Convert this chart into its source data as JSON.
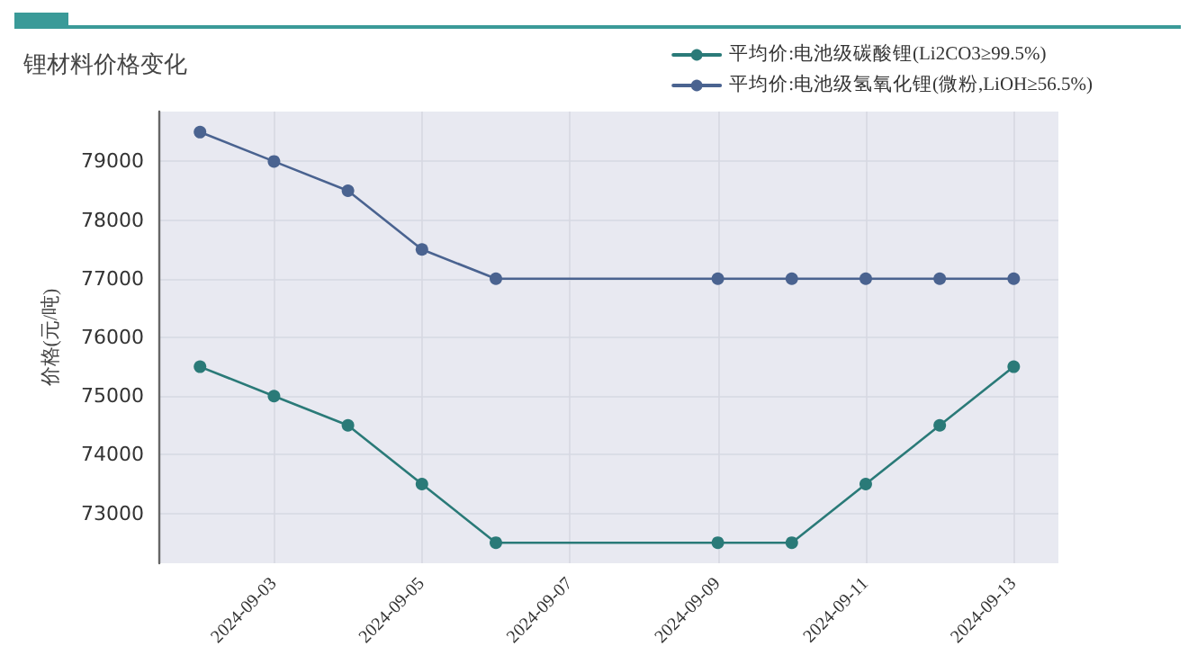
{
  "chart_data": {
    "type": "line",
    "title": "锂材料价格变化",
    "ylabel": "价格(元/吨)",
    "x": [
      "2024-09-02",
      "2024-09-03",
      "2024-09-04",
      "2024-09-05",
      "2024-09-06",
      "2024-09-09",
      "2024-09-10",
      "2024-09-11",
      "2024-09-12",
      "2024-09-13"
    ],
    "series": [
      {
        "name": "平均价:电池级碳酸锂(Li2CO3≥99.5%)",
        "color": "#2a7a78",
        "values": [
          75500,
          75000,
          74500,
          73500,
          72500,
          72500,
          72500,
          73500,
          74500,
          75500
        ]
      },
      {
        "name": "平均价:电池级氢氧化锂(微粉,LiOH≥56.5%)",
        "color": "#4a6390",
        "values": [
          79500,
          79000,
          78500,
          77500,
          77000,
          77000,
          77000,
          77000,
          77000,
          77000
        ]
      }
    ],
    "xlim": [
      "2024-09-01T10:30",
      "2024-09-13T14:30"
    ],
    "xticks": [
      "2024-09-03",
      "2024-09-05",
      "2024-09-07",
      "2024-09-09",
      "2024-09-11",
      "2024-09-13"
    ],
    "ylim": [
      72150,
      79850
    ],
    "yticks": [
      73000,
      74000,
      75000,
      76000,
      77000,
      78000,
      79000
    ],
    "grid": true,
    "legend": "top right",
    "marker": "circle",
    "line_style": "solid"
  }
}
